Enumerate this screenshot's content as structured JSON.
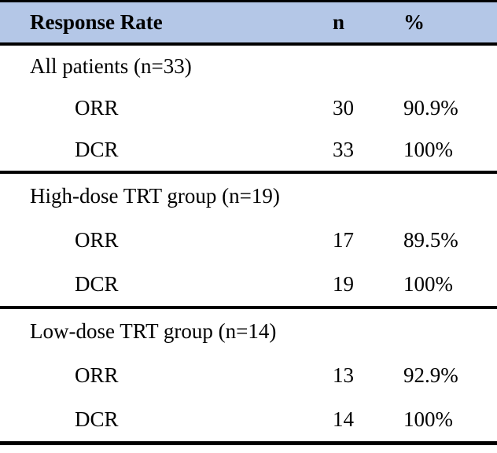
{
  "table": {
    "header": {
      "response_rate": "Response Rate",
      "n": "n",
      "percent": "%"
    },
    "sections": [
      {
        "label": "All patients (n=33)",
        "rows": [
          {
            "name": "ORR",
            "n": "30",
            "pct": "90.9%"
          },
          {
            "name": "DCR",
            "n": "33",
            "pct": "100%"
          }
        ]
      },
      {
        "label": "High-dose TRT group (n=19)",
        "rows": [
          {
            "name": "ORR",
            "n": "17",
            "pct": "89.5%"
          },
          {
            "name": "DCR",
            "n": "19",
            "pct": "100%"
          }
        ]
      },
      {
        "label": "Low-dose TRT group (n=14)",
        "rows": [
          {
            "name": "ORR",
            "n": "13",
            "pct": "92.9%"
          },
          {
            "name": "DCR",
            "n": "14",
            "pct": "100%"
          }
        ]
      }
    ],
    "colors": {
      "header_bg": "#b4c7e7",
      "border": "#000000",
      "text": "#000000"
    }
  },
  "chart_data": {
    "type": "table",
    "title": "Response Rate",
    "columns": [
      "Response Rate",
      "n",
      "%"
    ],
    "rows": [
      [
        "All patients (n=33)",
        "",
        ""
      ],
      [
        "ORR",
        "30",
        "90.9%"
      ],
      [
        "DCR",
        "33",
        "100%"
      ],
      [
        "High-dose TRT group (n=19)",
        "",
        ""
      ],
      [
        "ORR",
        "17",
        "89.5%"
      ],
      [
        "DCR",
        "19",
        "100%"
      ],
      [
        "Low-dose TRT group (n=14)",
        "",
        ""
      ],
      [
        "ORR",
        "13",
        "92.9%"
      ],
      [
        "DCR",
        "14",
        "100%"
      ]
    ]
  }
}
